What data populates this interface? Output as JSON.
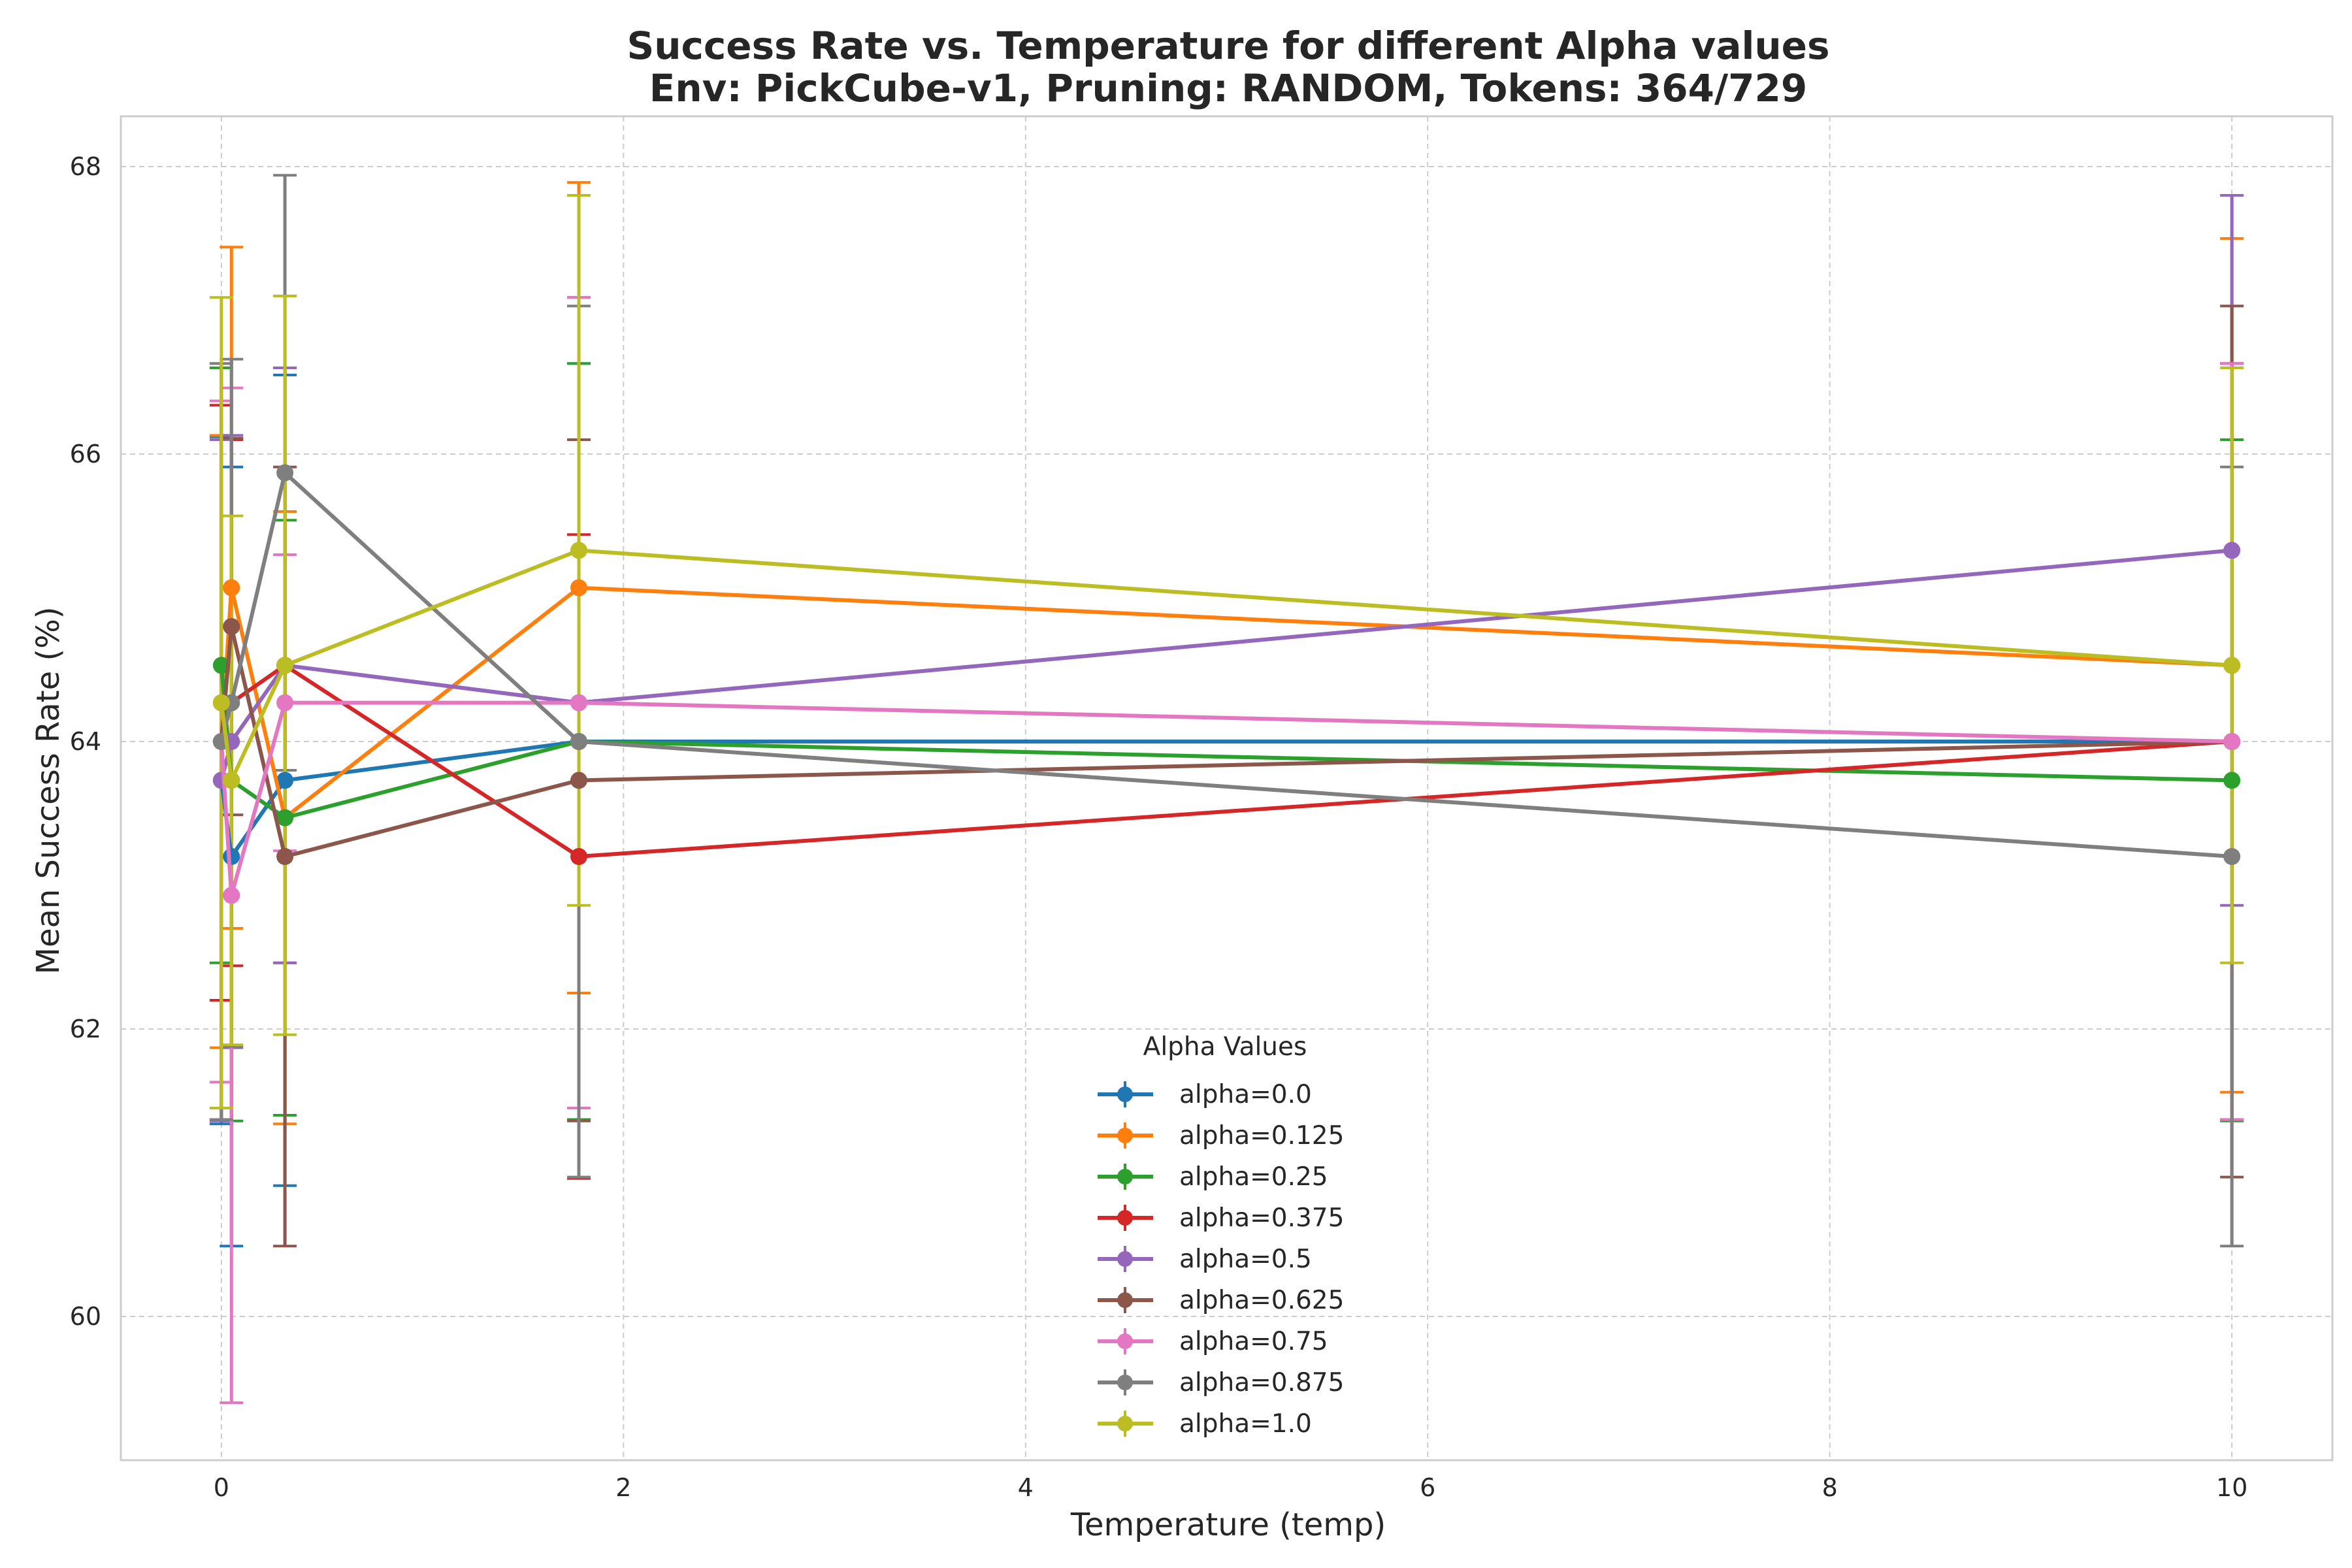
{
  "chart_data": {
    "type": "line",
    "title": "Success Rate vs. Temperature for different Alpha values",
    "subtitle": "Env: PickCube-v1, Pruning: RANDOM, Tokens: 364/729",
    "xlabel": "Temperature (temp)",
    "ylabel": "Mean Success Rate (%)",
    "xlim": [
      -0.5,
      10.5
    ],
    "ylim": [
      59.0,
      68.35
    ],
    "xticks": [
      0,
      2,
      4,
      6,
      8,
      10
    ],
    "yticks": [
      60,
      62,
      64,
      66,
      68
    ],
    "grid": true,
    "legend": {
      "title": "Alpha Values",
      "placement": "lower-center"
    },
    "x": [
      0.0,
      0.05,
      0.316,
      1.778,
      10.0
    ],
    "series": [
      {
        "name": "alpha=0.0",
        "color": "#1f77b4",
        "values": [
          63.73,
          63.2,
          63.73,
          64.0,
          64.0
        ],
        "err": [
          2.39,
          2.71,
          2.82,
          2.63,
          2.63
        ]
      },
      {
        "name": "alpha=0.125",
        "color": "#ff7f0e",
        "values": [
          64.0,
          65.07,
          63.47,
          65.07,
          64.53
        ],
        "err": [
          2.13,
          2.37,
          2.13,
          2.82,
          2.97
        ]
      },
      {
        "name": "alpha=0.25",
        "color": "#2ca02c",
        "values": [
          64.53,
          63.73,
          63.47,
          64.0,
          63.73
        ],
        "err": [
          2.07,
          2.37,
          2.07,
          2.63,
          2.37
        ]
      },
      {
        "name": "alpha=0.375",
        "color": "#d62728",
        "values": [
          64.27,
          64.27,
          64.53,
          63.2,
          64.0
        ],
        "err": [
          2.07,
          1.83,
          2.07,
          2.24,
          2.63
        ]
      },
      {
        "name": "alpha=0.5",
        "color": "#9467bd",
        "values": [
          63.73,
          64.0,
          64.53,
          64.27,
          65.33
        ],
        "err": [
          2.37,
          2.13,
          2.07,
          2.82,
          2.47
        ]
      },
      {
        "name": "alpha=0.625",
        "color": "#8c564b",
        "values": [
          64.0,
          64.8,
          63.2,
          63.73,
          64.0
        ],
        "err": [
          2.63,
          1.31,
          2.71,
          2.37,
          3.03
        ]
      },
      {
        "name": "alpha=0.75",
        "color": "#e377c2",
        "values": [
          64.0,
          62.93,
          64.27,
          64.27,
          64.0
        ],
        "err": [
          2.37,
          3.53,
          1.03,
          2.82,
          2.63
        ]
      },
      {
        "name": "alpha=0.875",
        "color": "#7f7f7f",
        "values": [
          64.0,
          64.27,
          65.87,
          64.0,
          63.2
        ],
        "err": [
          2.63,
          2.39,
          2.07,
          3.03,
          2.71
        ]
      },
      {
        "name": "alpha=1.0",
        "color": "#bcbd22",
        "values": [
          64.27,
          63.73,
          64.53,
          65.33,
          64.53
        ],
        "err": [
          2.82,
          1.84,
          2.57,
          2.47,
          2.07
        ]
      }
    ]
  }
}
